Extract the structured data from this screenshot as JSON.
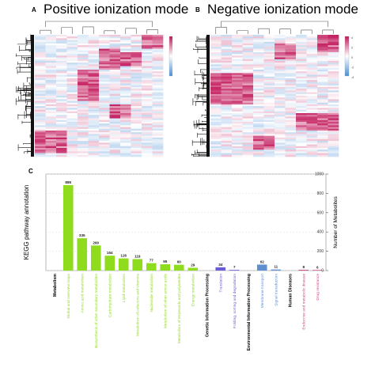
{
  "panels": {
    "a": {
      "letter": "A",
      "title": "Positive ionization mode"
    },
    "b": {
      "letter": "B",
      "title": "Negative ionization mode"
    },
    "c": {
      "letter": "C"
    }
  },
  "heatmap_scale": {
    "positive": [
      "4",
      "2",
      "0",
      "-2",
      "-4"
    ],
    "negative": [
      "4",
      "2",
      "0",
      "-2",
      "-4"
    ]
  },
  "colors": {
    "heat_high": "#c2185b",
    "heat_mid": "#ffffff",
    "heat_low": "#4a8fd6",
    "metabolism": "#8fdc1e",
    "genetic": "#6a5cd8",
    "environmental": "#5f8fd0",
    "human": "#d04a8a"
  },
  "chart_data": {
    "type": "bar",
    "ylabel": "KEGG pathway annotation",
    "y2label": "Number of Metabolites",
    "ylim": [
      0,
      1000
    ],
    "yticks": [
      "0",
      "200",
      "400",
      "600",
      "800",
      "1000"
    ],
    "groups": [
      {
        "name": "Metabolism",
        "color": "#8fdc1e",
        "categories": [
          "Global and overview maps",
          "Amino acid metabolism",
          "Biosynthesis of other secondary metabolites",
          "Carbohydrate metabolism",
          "Lipid metabolism",
          "Metabolism of cofactors and vitamins",
          "Nucleotide metabolism",
          "Metabolism of other amino acids",
          "Metabolism of terpenoids and polyketides",
          "Energy metabolism"
        ],
        "values": [
          885,
          335,
          260,
          154,
          126,
          119,
          77,
          65,
          60,
          29
        ]
      },
      {
        "name": "Genetic Information Processing",
        "color": "#6a5cd8",
        "categories": [
          "Translation",
          "Folding, sorting and degradation"
        ],
        "values": [
          34,
          7
        ]
      },
      {
        "name": "Environmental Information Processing",
        "color": "#5f8fd0",
        "categories": [
          "Membrane transport",
          "Signal transduction"
        ],
        "values": [
          62,
          11
        ]
      },
      {
        "name": "Human Diseases",
        "color": "#d04a8a",
        "categories": [
          "Endocrine and metabolic disease",
          "Drug resistance"
        ],
        "values": [
          8,
          6
        ]
      }
    ]
  }
}
